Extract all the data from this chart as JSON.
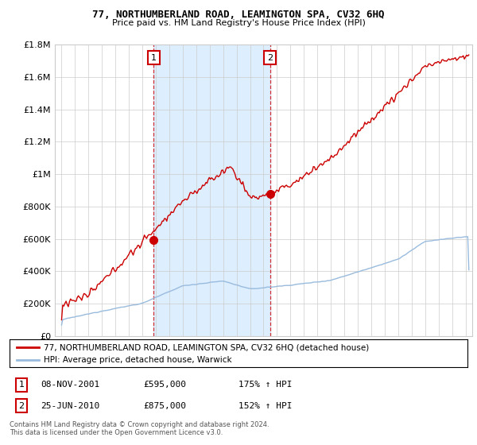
{
  "title": "77, NORTHUMBERLAND ROAD, LEAMINGTON SPA, CV32 6HQ",
  "subtitle": "Price paid vs. HM Land Registry's House Price Index (HPI)",
  "legend_line1": "77, NORTHUMBERLAND ROAD, LEAMINGTON SPA, CV32 6HQ (detached house)",
  "legend_line2": "HPI: Average price, detached house, Warwick",
  "sale1_date": "08-NOV-2001",
  "sale1_price": "£595,000",
  "sale1_hpi": "175% ↑ HPI",
  "sale1_year": 2001.85,
  "sale1_price_val": 595000,
  "sale2_date": "25-JUN-2010",
  "sale2_price": "£875,000",
  "sale2_hpi": "152% ↑ HPI",
  "sale2_year": 2010.48,
  "sale2_price_val": 875000,
  "footer1": "Contains HM Land Registry data © Crown copyright and database right 2024.",
  "footer2": "This data is licensed under the Open Government Licence v3.0.",
  "red_color": "#cc0000",
  "blue_color": "#99bbdd",
  "shade_color": "#ddeeff",
  "background_color": "#ffffff",
  "grid_color": "#cccccc",
  "ylim_max": 1800000,
  "xlim_start": 1994.5,
  "xlim_end": 2025.5
}
